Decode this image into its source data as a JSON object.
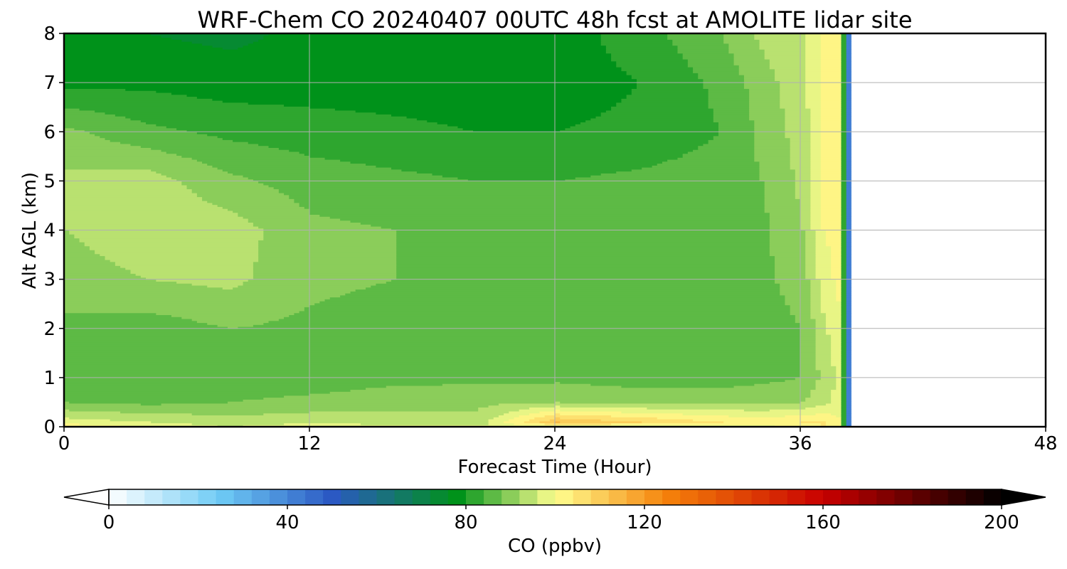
{
  "chart_data": {
    "type": "heatmap",
    "title": "WRF-Chem CO  20240407 00UTC 48h fcst at AMOLITE lidar site",
    "xlabel": "Forecast Time (Hour)",
    "ylabel": "Alt AGL (km)",
    "xlim": [
      0,
      48
    ],
    "ylim": [
      0,
      8
    ],
    "x_ticks": [
      0,
      12,
      24,
      36,
      48
    ],
    "x_tick_labels": [
      "0",
      "12",
      "24",
      "36",
      "48"
    ],
    "y_ticks": [
      0,
      1,
      2,
      3,
      4,
      5,
      6,
      7,
      8
    ],
    "y_tick_labels": [
      "0",
      "1",
      "2",
      "3",
      "4",
      "5",
      "6",
      "7",
      "8"
    ],
    "grid": true,
    "data_end_hour": 38.5,
    "colorbar": {
      "label": "CO  (ppbv)",
      "range": [
        0,
        200
      ],
      "extend": "both",
      "ticks": [
        0,
        40,
        80,
        120,
        160,
        200
      ],
      "tick_labels": [
        "0",
        "40",
        "80",
        "120",
        "160",
        "200"
      ],
      "levels": 50,
      "color_stops": [
        {
          "value": 0,
          "color": "#ffffff"
        },
        {
          "value": 25,
          "color": "#6ecbf5"
        },
        {
          "value": 50,
          "color": "#2b59c3"
        },
        {
          "value": 78,
          "color": "#00921a"
        },
        {
          "value": 100,
          "color": "#ffff90"
        },
        {
          "value": 125,
          "color": "#f5820a"
        },
        {
          "value": 160,
          "color": "#c80000"
        },
        {
          "value": 200,
          "color": "#000000"
        }
      ]
    },
    "field": {
      "description_free": true,
      "hours": [
        0,
        4,
        8,
        12,
        16,
        20,
        24,
        28,
        32,
        34,
        36,
        37,
        38,
        38.5
      ],
      "levels_km": [
        0,
        0.1,
        0.5,
        1,
        1.5,
        2,
        3,
        4,
        5,
        6,
        7,
        8
      ],
      "values": [
        [
          104,
          99,
          96,
          99,
          98,
          97,
          96,
          96,
          96,
          98,
          102,
          104,
          100,
          60
        ],
        [
          98,
          96,
          94,
          95,
          94,
          93,
          112,
          108,
          104,
          103,
          104,
          104,
          100,
          60
        ],
        [
          88,
          87,
          88,
          89,
          90,
          91,
          92,
          91,
          91,
          91,
          92,
          95,
          98,
          60
        ],
        [
          85,
          85,
          86,
          86,
          87,
          87,
          87,
          86,
          86,
          87,
          88,
          93,
          98,
          60
        ],
        [
          86,
          85,
          86,
          85,
          86,
          85,
          85,
          85,
          85,
          86,
          88,
          94,
          99,
          60
        ],
        [
          87,
          86,
          88,
          87,
          86,
          85,
          85,
          85,
          85,
          86,
          88,
          95,
          100,
          60
        ],
        [
          90,
          92,
          93,
          89,
          88,
          87,
          86,
          86,
          86,
          87,
          90,
          98,
          102,
          60
        ],
        [
          92,
          95,
          94,
          89,
          88,
          87,
          86,
          86,
          86,
          87,
          92,
          100,
          102,
          60
        ],
        [
          93,
          94,
          89,
          86,
          85,
          84,
          84,
          85,
          86,
          88,
          93,
          100,
          101,
          60
        ],
        [
          89,
          85,
          83,
          82,
          81,
          80,
          80,
          81,
          84,
          89,
          94,
          100,
          102,
          60
        ],
        [
          79,
          79,
          78,
          78,
          78,
          78,
          78,
          80,
          85,
          90,
          95,
          101,
          104,
          60
        ],
        [
          77,
          76,
          75,
          77,
          77,
          77,
          78,
          82,
          88,
          93,
          96,
          101,
          104,
          60
        ]
      ]
    }
  }
}
